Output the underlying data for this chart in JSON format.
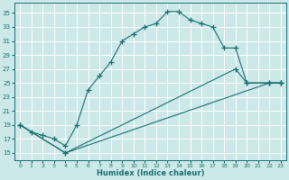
{
  "xlabel": "Humidex (Indice chaleur)",
  "bg_color": "#cce8e8",
  "grid_color": "#b8d8d8",
  "line_color": "#1a7070",
  "xlim": [
    -0.5,
    23.5
  ],
  "ylim": [
    14,
    36.5
  ],
  "xticks": [
    0,
    1,
    2,
    3,
    4,
    5,
    6,
    7,
    8,
    9,
    10,
    11,
    12,
    13,
    14,
    15,
    16,
    17,
    18,
    19,
    20,
    21,
    22,
    23
  ],
  "yticks": [
    15,
    17,
    19,
    21,
    23,
    25,
    27,
    29,
    31,
    33,
    35
  ],
  "curve1_x": [
    0,
    1,
    2,
    3,
    4,
    5,
    6,
    7,
    8,
    9,
    10,
    11,
    12,
    13,
    14,
    15,
    16,
    17,
    18,
    19,
    20,
    22,
    23
  ],
  "curve1_y": [
    19,
    18,
    17.5,
    17,
    16,
    19,
    24,
    26,
    28,
    31,
    32,
    33,
    33.5,
    35.2,
    35.2,
    34,
    33.5,
    33,
    30,
    30,
    25,
    25,
    25
  ],
  "curve2_x": [
    0,
    4,
    19,
    20,
    22,
    23
  ],
  "curve2_y": [
    19,
    15,
    27,
    25,
    25,
    25
  ],
  "curve3_x": [
    0,
    4,
    22,
    23
  ],
  "curve3_y": [
    19,
    15,
    25,
    25
  ]
}
